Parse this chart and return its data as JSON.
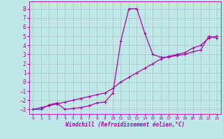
{
  "xlabel": "Windchill (Refroidissement éolien,°C)",
  "background_color": "#c0e8e8",
  "grid_color": "#b0c8c8",
  "line_color": "#aa00aa",
  "xlim": [
    -0.5,
    23.5
  ],
  "ylim": [
    -3.5,
    8.8
  ],
  "yticks": [
    -3,
    -2,
    -1,
    0,
    1,
    2,
    3,
    4,
    5,
    6,
    7,
    8
  ],
  "xticks": [
    0,
    1,
    2,
    3,
    4,
    5,
    6,
    7,
    8,
    9,
    10,
    11,
    12,
    13,
    14,
    15,
    16,
    17,
    18,
    19,
    20,
    21,
    22,
    23
  ],
  "line_straight_x": [
    0,
    1,
    2,
    3,
    4,
    5,
    6,
    7,
    8,
    9,
    10,
    11,
    12,
    13,
    14,
    15,
    16,
    17,
    18,
    19,
    20,
    21,
    22,
    23
  ],
  "line_straight_y": [
    -3.0,
    -2.8,
    -2.6,
    -2.4,
    -2.2,
    -2.0,
    -1.8,
    -1.6,
    -1.4,
    -1.2,
    -0.7,
    0.0,
    0.5,
    1.0,
    1.5,
    2.0,
    2.5,
    2.8,
    3.0,
    3.2,
    3.7,
    4.0,
    4.8,
    5.0
  ],
  "line_wavy_x": [
    0,
    1,
    2,
    3,
    4,
    5,
    6,
    7,
    8,
    9,
    10,
    11,
    12,
    13,
    14,
    15,
    16,
    17,
    18,
    19,
    20,
    21,
    22,
    23
  ],
  "line_wavy_y": [
    -3.0,
    -3.0,
    -2.5,
    -2.3,
    -3.0,
    -2.9,
    -2.8,
    -2.6,
    -2.3,
    -2.2,
    -1.2,
    4.5,
    8.0,
    8.0,
    5.3,
    3.0,
    2.7,
    2.7,
    2.9,
    3.0,
    3.3,
    3.5,
    5.0,
    4.8
  ]
}
